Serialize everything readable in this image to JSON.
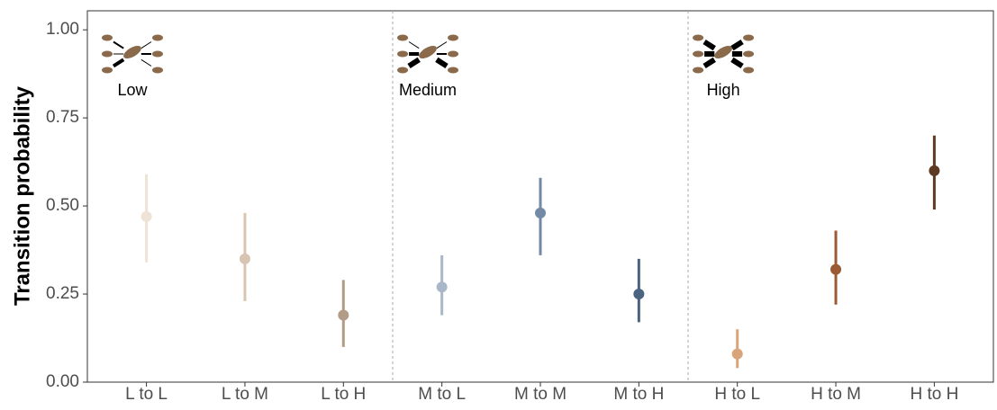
{
  "chart_data": {
    "type": "pointrange",
    "ylabel": "Transition probability",
    "categories": [
      "L to L",
      "L to M",
      "L to H",
      "M to L",
      "M to M",
      "M to H",
      "H to L",
      "H to M",
      "H to H"
    ],
    "values": [
      0.47,
      0.35,
      0.19,
      0.27,
      0.48,
      0.25,
      0.08,
      0.32,
      0.6
    ],
    "lower": [
      0.34,
      0.23,
      0.1,
      0.19,
      0.36,
      0.17,
      0.04,
      0.22,
      0.49
    ],
    "upper": [
      0.59,
      0.48,
      0.29,
      0.36,
      0.58,
      0.35,
      0.15,
      0.43,
      0.7
    ],
    "colors": [
      "#efe2d6",
      "#d8c5b1",
      "#b39c87",
      "#a9b7c9",
      "#7389a6",
      "#4a6380",
      "#d9a47a",
      "#9a5a33",
      "#5e3a22"
    ],
    "groups": [
      "Low",
      "Medium",
      "High"
    ],
    "ylim": [
      0,
      1.054
    ],
    "yticks": [
      {
        "value": 0,
        "label": "0.00"
      },
      {
        "value": 0.25,
        "label": "0.25"
      },
      {
        "value": 0.5,
        "label": "0.50"
      },
      {
        "value": 0.75,
        "label": "0.75"
      },
      {
        "value": 1,
        "label": "1.00"
      }
    ]
  }
}
